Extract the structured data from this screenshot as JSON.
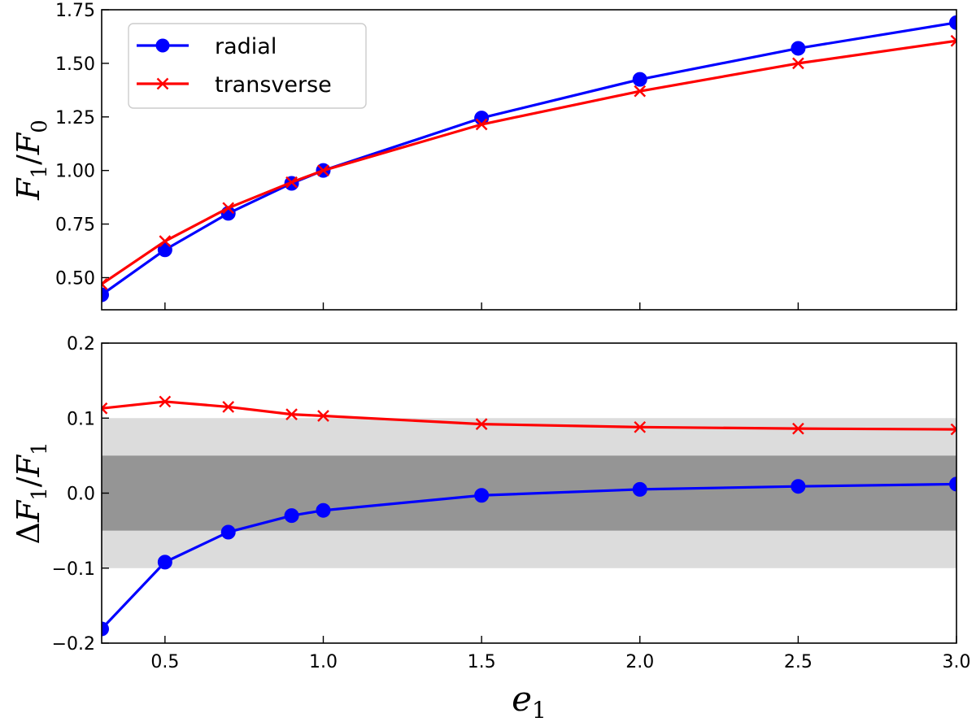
{
  "chart_data": [
    {
      "type": "line",
      "panel": "top",
      "xlim": [
        0.3,
        3.0
      ],
      "ylim": [
        0.35,
        1.75
      ],
      "ylabel": {
        "var": "F",
        "sub": "1",
        "var2": "F",
        "sub2": "0"
      },
      "yticks": [
        0.5,
        0.75,
        1.0,
        1.25,
        1.5,
        1.75
      ],
      "ytick_labels": [
        "0.50",
        "0.75",
        "1.00",
        "1.25",
        "1.50",
        "1.75"
      ],
      "xticks": [
        0.5,
        1.0,
        1.5,
        2.0,
        2.5,
        3.0
      ],
      "legend": {
        "placement": "top-left"
      },
      "series": [
        {
          "name": "radial",
          "color": "#0000ff",
          "marker": "circle",
          "x": [
            0.3,
            0.5,
            0.7,
            0.9,
            1.0,
            1.5,
            2.0,
            2.5,
            3.0
          ],
          "y": [
            0.42,
            0.63,
            0.8,
            0.94,
            1.0,
            1.245,
            1.425,
            1.57,
            1.69
          ]
        },
        {
          "name": "transverse",
          "color": "#ff0000",
          "marker": "x",
          "x": [
            0.3,
            0.5,
            0.7,
            0.9,
            1.0,
            1.5,
            2.0,
            2.5,
            3.0
          ],
          "y": [
            0.47,
            0.67,
            0.825,
            0.945,
            1.0,
            1.215,
            1.37,
            1.5,
            1.605
          ]
        }
      ]
    },
    {
      "type": "line",
      "panel": "bottom",
      "xlim": [
        0.3,
        3.0
      ],
      "ylim": [
        -0.2,
        0.2
      ],
      "xlabel": {
        "var": "e",
        "sub": "1"
      },
      "ylabel": {
        "prefix": "Δ",
        "var": "F",
        "sub": "1",
        "var2": "F",
        "sub2": "1"
      },
      "yticks": [
        -0.2,
        -0.1,
        0.0,
        0.1,
        0.2
      ],
      "ytick_labels": [
        "−0.2",
        "−0.1",
        "0.0",
        "0.1",
        "0.2"
      ],
      "xticks": [
        0.5,
        1.0,
        1.5,
        2.0,
        2.5,
        3.0
      ],
      "xtick_labels": [
        "0.5",
        "1.0",
        "1.5",
        "2.0",
        "2.5",
        "3.0"
      ],
      "bands": [
        {
          "y0": -0.1,
          "y1": 0.1,
          "color": "#dcdcdc"
        },
        {
          "y0": -0.05,
          "y1": 0.05,
          "color": "#959595"
        }
      ],
      "series": [
        {
          "name": "radial",
          "color": "#0000ff",
          "marker": "circle",
          "x": [
            0.3,
            0.5,
            0.7,
            0.9,
            1.0,
            1.5,
            2.0,
            2.5,
            3.0
          ],
          "y": [
            -0.181,
            -0.092,
            -0.052,
            -0.03,
            -0.023,
            -0.003,
            0.005,
            0.009,
            0.012
          ]
        },
        {
          "name": "transverse",
          "color": "#ff0000",
          "marker": "x",
          "x": [
            0.3,
            0.5,
            0.7,
            0.9,
            1.0,
            1.5,
            2.0,
            2.5,
            3.0
          ],
          "y": [
            0.113,
            0.122,
            0.115,
            0.105,
            0.103,
            0.092,
            0.088,
            0.086,
            0.085
          ]
        }
      ]
    }
  ]
}
